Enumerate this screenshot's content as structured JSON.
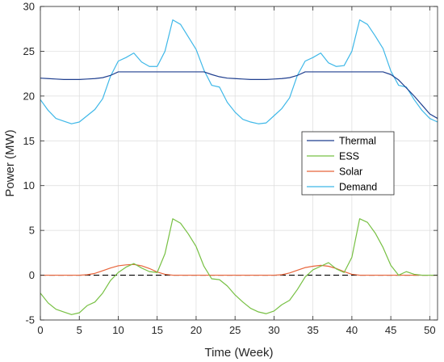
{
  "chart_data": {
    "type": "line",
    "xlabel": "Time (Week)",
    "ylabel": "Power (MW)",
    "xlim": [
      0,
      51
    ],
    "ylim": [
      -5,
      30
    ],
    "xticks": [
      0,
      5,
      10,
      15,
      20,
      25,
      30,
      35,
      40,
      45,
      50
    ],
    "yticks": [
      -5,
      0,
      5,
      10,
      15,
      20,
      25,
      30
    ],
    "grid": true,
    "legend_position": "right-middle",
    "reference_line": {
      "y": 0,
      "style": "dashed",
      "color": "#000000"
    },
    "series": [
      {
        "name": "Thermal",
        "color": "#1f3f8f",
        "x": [
          0,
          1,
          2,
          3,
          4,
          5,
          6,
          7,
          8,
          9,
          10,
          11,
          12,
          13,
          14,
          15,
          16,
          17,
          18,
          19,
          20,
          21,
          22,
          23,
          24,
          25,
          26,
          27,
          28,
          29,
          30,
          31,
          32,
          33,
          34,
          35,
          36,
          37,
          38,
          39,
          40,
          41,
          42,
          43,
          44,
          45,
          46,
          47,
          48,
          49,
          50,
          51
        ],
        "y": [
          22.0,
          21.95,
          21.9,
          21.85,
          21.85,
          21.85,
          21.9,
          21.95,
          22.05,
          22.3,
          22.7,
          22.7,
          22.7,
          22.7,
          22.7,
          22.7,
          22.7,
          22.7,
          22.7,
          22.7,
          22.7,
          22.7,
          22.4,
          22.15,
          22.0,
          21.95,
          21.9,
          21.85,
          21.85,
          21.85,
          21.9,
          21.95,
          22.05,
          22.3,
          22.7,
          22.7,
          22.7,
          22.7,
          22.7,
          22.7,
          22.7,
          22.7,
          22.7,
          22.7,
          22.7,
          22.4,
          21.8,
          20.9,
          20.0,
          19.0,
          18.0,
          17.5
        ]
      },
      {
        "name": "ESS",
        "color": "#77c043",
        "x": [
          0,
          1,
          2,
          3,
          4,
          5,
          6,
          7,
          8,
          9,
          10,
          11,
          12,
          13,
          14,
          15,
          16,
          17,
          18,
          19,
          20,
          21,
          22,
          23,
          24,
          25,
          26,
          27,
          28,
          29,
          30,
          31,
          32,
          33,
          34,
          35,
          36,
          37,
          38,
          39,
          40,
          41,
          42,
          43,
          44,
          45,
          46,
          47,
          48,
          49,
          50,
          51
        ],
        "y": [
          -2.0,
          -3.1,
          -3.8,
          -4.1,
          -4.4,
          -4.2,
          -3.4,
          -3.0,
          -2.0,
          -0.6,
          0.3,
          0.9,
          1.3,
          0.8,
          0.4,
          0.3,
          2.4,
          6.3,
          5.8,
          4.6,
          3.2,
          1.0,
          -0.4,
          -0.5,
          -1.2,
          -2.2,
          -3.0,
          -3.7,
          -4.1,
          -4.3,
          -4.0,
          -3.3,
          -2.8,
          -1.6,
          -0.2,
          0.6,
          1.0,
          1.4,
          0.7,
          0.3,
          2.0,
          6.3,
          5.9,
          4.7,
          3.1,
          1.1,
          0.0,
          0.4,
          0.1,
          0.0,
          0.0,
          0.0
        ]
      },
      {
        "name": "Solar",
        "color": "#e8643a",
        "x": [
          0,
          1,
          2,
          3,
          4,
          5,
          6,
          7,
          8,
          9,
          10,
          11,
          12,
          13,
          14,
          15,
          16,
          17,
          18,
          19,
          20,
          21,
          22,
          23,
          24,
          25,
          26,
          27,
          28,
          29,
          30,
          31,
          32,
          33,
          34,
          35,
          36,
          37,
          38,
          39,
          40,
          41,
          42,
          43,
          44,
          45,
          46,
          47,
          48,
          49,
          50,
          51
        ],
        "y": [
          0.0,
          0.0,
          0.0,
          0.0,
          0.0,
          0.0,
          0.05,
          0.2,
          0.5,
          0.8,
          1.05,
          1.15,
          1.2,
          1.05,
          0.75,
          0.35,
          0.1,
          0.0,
          0.0,
          0.0,
          0.0,
          0.0,
          0.0,
          0.0,
          0.0,
          0.0,
          0.0,
          0.0,
          0.0,
          0.0,
          0.0,
          0.05,
          0.25,
          0.55,
          0.85,
          1.0,
          1.1,
          1.0,
          0.75,
          0.4,
          0.1,
          0.0,
          0.0,
          0.0,
          0.0,
          0.0,
          0.0,
          0.0,
          0.0,
          0.0,
          0.0,
          0.0
        ]
      },
      {
        "name": "Demand",
        "color": "#3fb8e8",
        "x": [
          0,
          1,
          2,
          3,
          4,
          5,
          6,
          7,
          8,
          9,
          10,
          11,
          12,
          13,
          14,
          15,
          16,
          17,
          18,
          19,
          20,
          21,
          22,
          23,
          24,
          25,
          26,
          27,
          28,
          29,
          30,
          31,
          32,
          33,
          34,
          35,
          36,
          37,
          38,
          39,
          40,
          41,
          42,
          43,
          44,
          45,
          46,
          47,
          48,
          49,
          50,
          51
        ],
        "y": [
          19.6,
          18.4,
          17.5,
          17.2,
          16.9,
          17.1,
          17.8,
          18.5,
          19.7,
          22.2,
          23.9,
          24.3,
          24.8,
          23.8,
          23.3,
          23.3,
          25.0,
          28.5,
          28.0,
          26.6,
          25.2,
          22.9,
          21.2,
          21.0,
          19.3,
          18.2,
          17.4,
          17.1,
          16.9,
          17.0,
          17.8,
          18.6,
          19.8,
          22.3,
          23.9,
          24.3,
          24.8,
          23.7,
          23.3,
          23.4,
          25.0,
          28.5,
          28.0,
          26.7,
          25.3,
          22.8,
          21.2,
          21.0,
          19.6,
          18.4,
          17.5,
          17.1
        ]
      }
    ]
  }
}
